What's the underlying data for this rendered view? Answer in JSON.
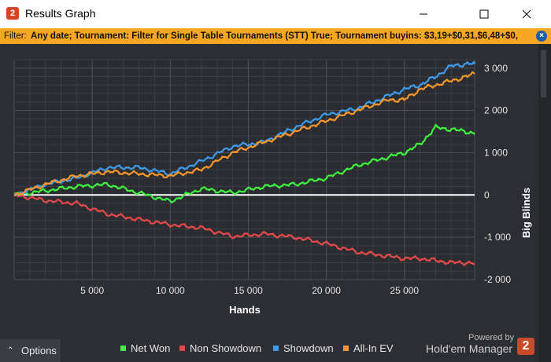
{
  "window": {
    "title": "Results Graph",
    "app_icon_text": "2",
    "minimize_icon": "minimize-icon",
    "maximize_icon": "maximize-icon",
    "close_icon": "close-icon"
  },
  "filter": {
    "label": "Filter:",
    "text": "Any date; Tournament: Filter for Single Table Tournaments (STT) True; Tournament buyins: $3,19+$0,31,$6,48+$0,"
  },
  "options": {
    "label": "Options",
    "icon": "chevron-up-icon"
  },
  "legend": [
    {
      "label": "Net Won",
      "color": "#3ef23e"
    },
    {
      "label": "Non Showdown",
      "color": "#e44848"
    },
    {
      "label": "Showdown",
      "color": "#3d9be9"
    },
    {
      "label": "All-In EV",
      "color": "#f5952a"
    }
  ],
  "branding": {
    "powered_by": "Powered by",
    "name": "Hold'em Manager",
    "badge": "2"
  },
  "chart_data": {
    "type": "line",
    "xlabel": "Hands",
    "ylabel": "Big Blinds",
    "xlim": [
      0,
      29500
    ],
    "ylim": [
      -2000,
      3200
    ],
    "x_ticks": [
      5000,
      10000,
      15000,
      20000,
      25000
    ],
    "x_tick_labels": [
      "5 000",
      "10 000",
      "15 000",
      "20 000",
      "25 000"
    ],
    "y_ticks": [
      -2000,
      -1000,
      0,
      1000,
      2000,
      3000
    ],
    "y_tick_labels": [
      "-2 000",
      "-1 000",
      "0",
      "1 000",
      "2 000",
      "3 000"
    ],
    "grid": true,
    "x": [
      0,
      2000,
      4000,
      6000,
      8000,
      10000,
      12000,
      14000,
      16000,
      18000,
      20000,
      22000,
      24000,
      25000,
      26000,
      27000,
      28000,
      29000,
      29500
    ],
    "series": [
      {
        "name": "Net Won",
        "color": "#3ef23e",
        "values": [
          0,
          100,
          200,
          250,
          50,
          -150,
          150,
          50,
          200,
          250,
          400,
          700,
          900,
          1000,
          1200,
          1600,
          1550,
          1500,
          1450
        ]
      },
      {
        "name": "Non Showdown",
        "color": "#e44848",
        "values": [
          0,
          -130,
          -200,
          -450,
          -580,
          -700,
          -780,
          -980,
          -920,
          -1000,
          -1150,
          -1350,
          -1450,
          -1500,
          -1500,
          -1550,
          -1600,
          -1600,
          -1620
        ]
      },
      {
        "name": "Showdown",
        "color": "#3d9be9",
        "values": [
          0,
          250,
          400,
          650,
          650,
          500,
          800,
          1150,
          1250,
          1600,
          1900,
          2050,
          2350,
          2500,
          2600,
          2800,
          3050,
          3100,
          3100
        ]
      },
      {
        "name": "All-In EV",
        "color": "#f5952a",
        "values": [
          0,
          250,
          450,
          550,
          500,
          450,
          600,
          1000,
          1250,
          1500,
          1750,
          2000,
          2250,
          2250,
          2500,
          2600,
          2700,
          2800,
          2880
        ]
      }
    ]
  }
}
